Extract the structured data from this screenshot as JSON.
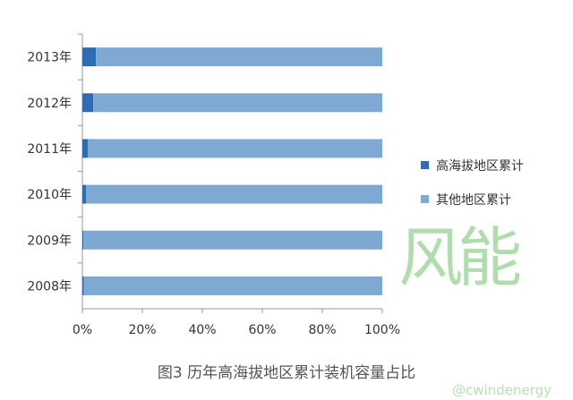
{
  "chart_data": {
    "type": "bar",
    "orientation": "horizontal",
    "stacked": "percent",
    "title": "图3 历年高海拔地区累计装机容量占比",
    "categories": [
      "2013年",
      "2012年",
      "2011年",
      "2010年",
      "2009年",
      "2008年"
    ],
    "series": [
      {
        "name": "高海拔地区累计",
        "color": "#2E6DB4",
        "values": [
          4.5,
          3.6,
          1.8,
          1.2,
          0.3,
          0.5
        ]
      },
      {
        "name": "其他地区累计",
        "color": "#7EA9D3",
        "values": [
          95.5,
          96.4,
          98.2,
          98.8,
          99.7,
          99.5
        ]
      }
    ],
    "xticks": [
      "0%",
      "20%",
      "40%",
      "60%",
      "80%",
      "100%"
    ],
    "xlim": [
      0,
      100
    ],
    "legend": "right"
  },
  "watermark": {
    "logo": "风能",
    "handle": "@cwindenergy"
  }
}
